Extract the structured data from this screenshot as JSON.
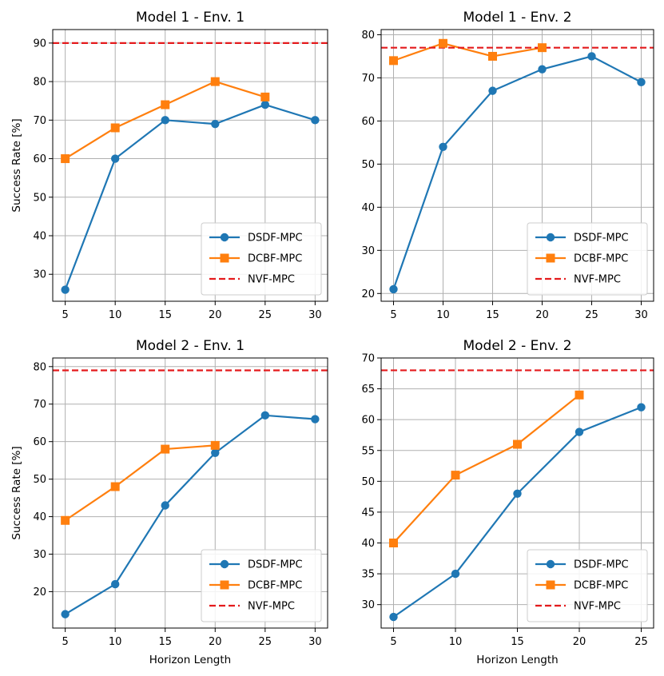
{
  "figure": {
    "xlabel": "Horizon Length",
    "ylabel": "Success Rate [%]"
  },
  "colors": {
    "DSDF-MPC": "#1f77b4",
    "DCBF-MPC": "#ff7f0e",
    "NVF-MPC": "#e41a1c",
    "grid": "#b0b0b0"
  },
  "chart_data": [
    {
      "type": "line",
      "title": "Model 1 - Env. 1",
      "xlabel": "",
      "ylabel": "Success Rate [%]",
      "xlim": [
        3.75,
        31.25
      ],
      "ylim": [
        23,
        93.5
      ],
      "xticks": [
        5,
        10,
        15,
        20,
        25,
        30
      ],
      "yticks": [
        30,
        40,
        50,
        60,
        70,
        80,
        90
      ],
      "legend": "lower-right",
      "series": [
        {
          "name": "DSDF-MPC",
          "marker": "circle",
          "x": [
            5,
            10,
            15,
            20,
            25,
            30
          ],
          "values": [
            26,
            60,
            70,
            69,
            74,
            70
          ]
        },
        {
          "name": "DCBF-MPC",
          "marker": "square",
          "x": [
            5,
            10,
            15,
            20,
            25
          ],
          "values": [
            60,
            68,
            74,
            80,
            76
          ]
        },
        {
          "name": "NVF-MPC",
          "marker": "dashed-line",
          "constant": 90
        }
      ]
    },
    {
      "type": "line",
      "title": "Model 1 - Env. 2",
      "xlabel": "",
      "ylabel": "",
      "xlim": [
        3.75,
        31.25
      ],
      "ylim": [
        18.2,
        81.2
      ],
      "xticks": [
        5,
        10,
        15,
        20,
        25,
        30
      ],
      "yticks": [
        20,
        30,
        40,
        50,
        60,
        70,
        80
      ],
      "legend": "lower-right",
      "series": [
        {
          "name": "DSDF-MPC",
          "marker": "circle",
          "x": [
            5,
            10,
            15,
            20,
            25,
            30
          ],
          "values": [
            21,
            54,
            67,
            72,
            75,
            69
          ]
        },
        {
          "name": "DCBF-MPC",
          "marker": "square",
          "x": [
            5,
            10,
            15,
            20
          ],
          "values": [
            74,
            78,
            75,
            77
          ]
        },
        {
          "name": "NVF-MPC",
          "marker": "dashed-line",
          "constant": 77
        }
      ]
    },
    {
      "type": "line",
      "title": "Model 2 - Env. 1",
      "xlabel": "Horizon Length",
      "ylabel": "Success Rate [%]",
      "xlim": [
        3.75,
        31.25
      ],
      "ylim": [
        10.3,
        82.3
      ],
      "xticks": [
        5,
        10,
        15,
        20,
        25,
        30
      ],
      "yticks": [
        20,
        30,
        40,
        50,
        60,
        70,
        80
      ],
      "legend": "lower-right",
      "series": [
        {
          "name": "DSDF-MPC",
          "marker": "circle",
          "x": [
            5,
            10,
            15,
            20,
            25,
            30
          ],
          "values": [
            14,
            22,
            43,
            57,
            67,
            66
          ]
        },
        {
          "name": "DCBF-MPC",
          "marker": "square",
          "x": [
            5,
            10,
            15,
            20
          ],
          "values": [
            39,
            48,
            58,
            59
          ]
        },
        {
          "name": "NVF-MPC",
          "marker": "dashed-line",
          "constant": 79
        }
      ]
    },
    {
      "type": "line",
      "title": "Model 2 - Env. 2",
      "xlabel": "Horizon Length",
      "ylabel": "",
      "xlim": [
        4.0,
        26.0
      ],
      "ylim": [
        26.2,
        70.0
      ],
      "xticks": [
        5,
        10,
        15,
        20,
        25
      ],
      "yticks": [
        30,
        35,
        40,
        45,
        50,
        55,
        60,
        65,
        70
      ],
      "legend": "lower-right",
      "series": [
        {
          "name": "DSDF-MPC",
          "marker": "circle",
          "x": [
            5,
            10,
            15,
            20,
            25
          ],
          "values": [
            28,
            35,
            48,
            58,
            62
          ]
        },
        {
          "name": "DCBF-MPC",
          "marker": "square",
          "x": [
            5,
            10,
            15,
            20
          ],
          "values": [
            40,
            51,
            56,
            64
          ]
        },
        {
          "name": "NVF-MPC",
          "marker": "dashed-line",
          "constant": 68
        }
      ]
    }
  ]
}
